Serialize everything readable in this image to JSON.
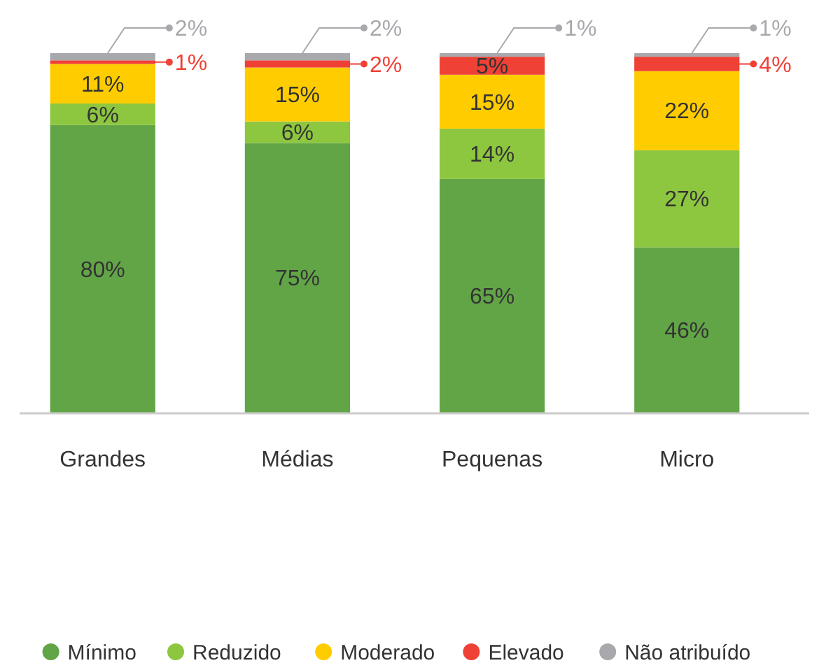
{
  "chart_data": {
    "type": "bar",
    "stacked": true,
    "legend": "bottom",
    "categories": [
      "Grandes",
      "Médias",
      "Pequenas",
      "Micro"
    ],
    "series": [
      {
        "name": "Mínimo",
        "color": "#62a547",
        "values": [
          80,
          75,
          65,
          46
        ],
        "value_labels": [
          "80%",
          "75%",
          "65%",
          "46%"
        ]
      },
      {
        "name": "Reduzido",
        "color": "#8dc63f",
        "values": [
          6,
          6,
          14,
          27
        ],
        "value_labels": [
          "6%",
          "6%",
          "14%",
          "27%"
        ]
      },
      {
        "name": "Moderado",
        "color": "#ffcc00",
        "values": [
          11,
          15,
          15,
          22
        ],
        "value_labels": [
          "11%",
          "15%",
          "15%",
          "22%"
        ]
      },
      {
        "name": "Elevado",
        "color": "#ef4136",
        "values": [
          1,
          2,
          5,
          4
        ],
        "value_labels": [
          "1%",
          "2%",
          "5%",
          "4%"
        ]
      },
      {
        "name": "Não atribuído",
        "color": "#a7a9ac",
        "values": [
          2,
          2,
          1,
          1
        ],
        "value_labels": [
          "2%",
          "2%",
          "1%",
          "1%"
        ]
      }
    ]
  }
}
